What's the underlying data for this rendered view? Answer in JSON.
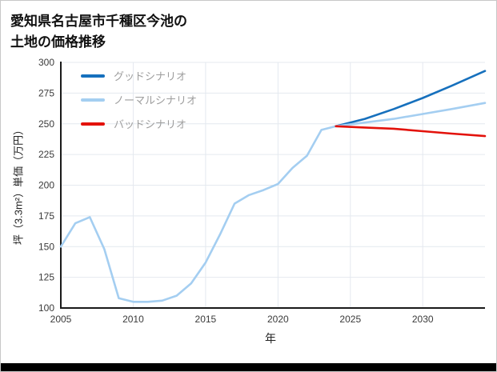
{
  "title": {
    "line1": "愛知県名古屋市千種区今池の",
    "line2": "土地の価格推移"
  },
  "chart_data": {
    "type": "line",
    "title": "愛知県名古屋市千種区今池の土地の価格推移",
    "xlabel": "年",
    "ylabel": "坪（3.3m²）単価（万円）",
    "xlim": [
      2005,
      2034.3
    ],
    "ylim": [
      100,
      300
    ],
    "x_ticks": [
      2005,
      2010,
      2015,
      2020,
      2025,
      2030
    ],
    "y_ticks": [
      100,
      125,
      150,
      175,
      200,
      225,
      250,
      275,
      300
    ],
    "grid": true,
    "legend_position": "inside-top-left",
    "colors": {
      "grid": "#e4e9ef",
      "axis": "#1a1a1a",
      "tick_text": "#3a3a3a",
      "legend_text": "#9e9e9e",
      "good": "#1670bd",
      "normal": "#a4cef1",
      "bad": "#e3120b"
    },
    "series": [
      {
        "id": "historical",
        "legend": false,
        "color": "#a4cef1",
        "x": [
          2005,
          2006,
          2007,
          2008,
          2009,
          2010,
          2011,
          2012,
          2013,
          2014,
          2015,
          2016,
          2017,
          2018,
          2019,
          2020,
          2021,
          2022,
          2023,
          2024
        ],
        "values": [
          150,
          169,
          174,
          148,
          108,
          105,
          105,
          106,
          110,
          120,
          137,
          160,
          185,
          192,
          196,
          201,
          214,
          224,
          245,
          248
        ]
      },
      {
        "id": "good",
        "name": "グッドシナリオ",
        "legend": true,
        "color": "#1670bd",
        "x": [
          2024,
          2026,
          2028,
          2030,
          2032,
          2034.3
        ],
        "values": [
          248,
          254,
          262,
          271,
          281,
          293
        ]
      },
      {
        "id": "normal",
        "name": "ノーマルシナリオ",
        "legend": true,
        "color": "#a4cef1",
        "x": [
          2024,
          2026,
          2028,
          2030,
          2032,
          2034.3
        ],
        "values": [
          248,
          251,
          254,
          258,
          262,
          267
        ]
      },
      {
        "id": "bad",
        "name": "バッドシナリオ",
        "legend": true,
        "color": "#e3120b",
        "x": [
          2024,
          2026,
          2028,
          2030,
          2032,
          2034.3
        ],
        "values": [
          248,
          247,
          246,
          244,
          242,
          240
        ]
      }
    ]
  }
}
